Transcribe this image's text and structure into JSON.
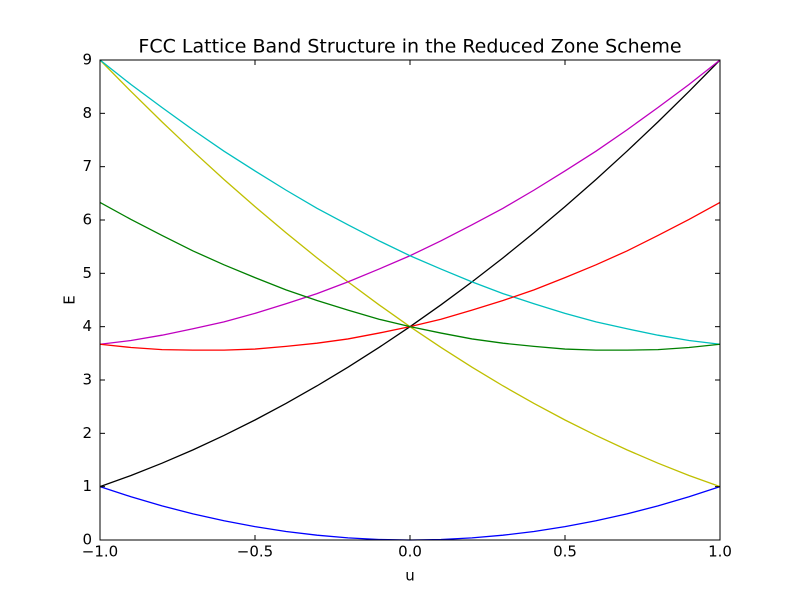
{
  "chart_data": {
    "type": "line",
    "title": "FCC Lattice Band Structure in the Reduced Zone Scheme",
    "x_label": "u",
    "y_label": "E",
    "x": [
      -1,
      -0.9,
      -0.8,
      -0.7,
      -0.6,
      -0.5,
      -0.4,
      -0.3,
      -0.2,
      -0.1,
      0,
      0.1,
      0.2,
      0.3,
      0.4,
      0.5,
      0.6,
      0.7,
      0.8,
      0.9,
      1
    ],
    "series": [
      {
        "color": "#0000ff",
        "values": [
          1,
          0.81,
          0.64,
          0.49,
          0.36,
          0.25,
          0.16,
          0.09,
          0.04,
          0.01,
          0,
          0.01,
          0.04,
          0.09,
          0.16,
          0.25,
          0.36,
          0.49,
          0.64,
          0.81,
          1
        ]
      },
      {
        "color": "#000000",
        "values": [
          1,
          1.21,
          1.44,
          1.69,
          1.96,
          2.25,
          2.56,
          2.89,
          3.24,
          3.61,
          4,
          4.41,
          4.84,
          5.29,
          5.76,
          6.25,
          6.76,
          7.29,
          7.84,
          8.41,
          9
        ]
      },
      {
        "color": "#bfbf00",
        "values": [
          9,
          8.41,
          7.84,
          7.29,
          6.76,
          6.25,
          5.76,
          5.29,
          4.84,
          4.41,
          4,
          3.61,
          3.24,
          2.89,
          2.56,
          2.25,
          1.96,
          1.69,
          1.44,
          1.21,
          1
        ]
      },
      {
        "color": "#bf00bf",
        "values": [
          3.67,
          3.74,
          3.84,
          3.96,
          4.09,
          4.25,
          4.43,
          4.62,
          4.84,
          5.08,
          5.33,
          5.61,
          5.91,
          6.22,
          6.56,
          6.92,
          7.29,
          7.69,
          8.11,
          8.54,
          9
        ]
      },
      {
        "color": "#00bfbf",
        "values": [
          9,
          8.54,
          8.11,
          7.69,
          7.29,
          6.92,
          6.56,
          6.22,
          5.91,
          5.61,
          5.33,
          5.08,
          4.84,
          4.62,
          4.43,
          4.25,
          4.09,
          3.96,
          3.84,
          3.74,
          3.67
        ]
      },
      {
        "color": "#ff0000",
        "values": [
          3.67,
          3.61,
          3.57,
          3.56,
          3.56,
          3.58,
          3.63,
          3.69,
          3.77,
          3.88,
          4,
          4.14,
          4.31,
          4.49,
          4.69,
          4.92,
          5.16,
          5.42,
          5.71,
          6.01,
          6.33
        ]
      },
      {
        "color": "#008000",
        "values": [
          6.33,
          6.01,
          5.71,
          5.42,
          5.16,
          4.92,
          4.69,
          4.49,
          4.31,
          4.14,
          4,
          3.88,
          3.77,
          3.69,
          3.63,
          3.58,
          3.56,
          3.56,
          3.57,
          3.61,
          3.67
        ]
      }
    ],
    "xlim": [
      -1,
      1
    ],
    "ylim": [
      0,
      9
    ],
    "xticks": [
      {
        "value": -1,
        "label": "−1.0"
      },
      {
        "value": -0.5,
        "label": "−0.5"
      },
      {
        "value": 0,
        "label": "0.0"
      },
      {
        "value": 0.5,
        "label": "0.5"
      },
      {
        "value": 1,
        "label": "1.0"
      }
    ],
    "yticks": [
      0,
      1,
      2,
      3,
      4,
      5,
      6,
      7,
      8,
      9
    ],
    "grid": false
  }
}
